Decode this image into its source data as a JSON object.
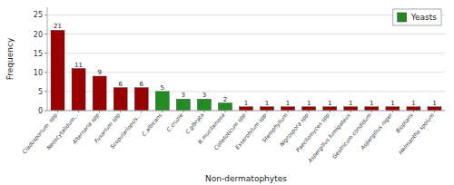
{
  "chart_data": {
    "type": "bar",
    "xlabel": "Non-dermatophytes",
    "ylabel": "Frequency",
    "categories": [
      "Cladosporium  spp",
      "Neoscytalidum...",
      "Alternaria spp",
      "Fusarium spp",
      "Scopulariopsis...",
      "C.albicans",
      "C.cruzie",
      "C.glbrata",
      "R.mucilainosa",
      "Colletoticum spp",
      "Exserohilum spp",
      "Stemphylium",
      "Nigrospora spp",
      "Paecilomyces spp",
      "Aspergillus fumigateus",
      "Geotricum condidum",
      "Aspergillus niger",
      "Bioplaris",
      "Helmantho spoium"
    ],
    "values": [
      21,
      11,
      9,
      6,
      6,
      5,
      3,
      3,
      2,
      1,
      1,
      1,
      1,
      1,
      1,
      1,
      1,
      1,
      1
    ],
    "colors": [
      "#990000",
      "#990000",
      "#990000",
      "#990000",
      "#990000",
      "#228B22",
      "#228B22",
      "#228B22",
      "#228B22",
      "#990000",
      "#990000",
      "#990000",
      "#990000",
      "#990000",
      "#990000",
      "#990000",
      "#990000",
      "#990000",
      "#990000"
    ],
    "ylim": [
      0,
      27
    ],
    "yticks": [
      0,
      5,
      10,
      15,
      20,
      25
    ],
    "grid": true,
    "data_labels": true,
    "legend": "upper right",
    "legend_label": "Yeasts",
    "legend_color": "#228B22"
  }
}
